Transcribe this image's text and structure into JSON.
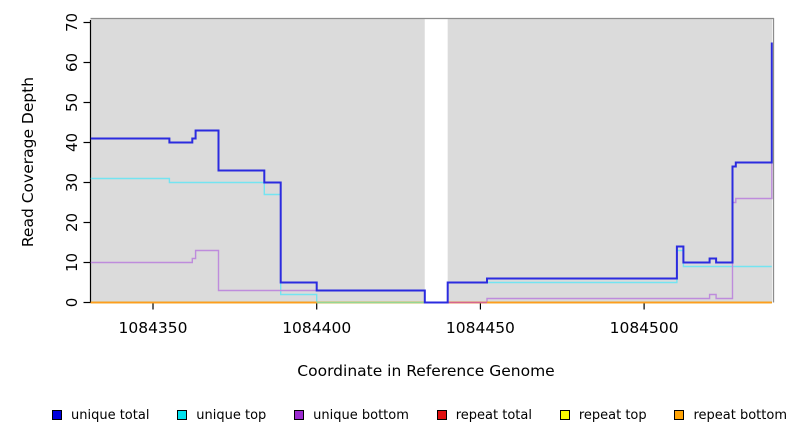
{
  "chart_data": {
    "type": "line",
    "subtype": "step-coverage-plot",
    "title": "",
    "xlabel": "Coordinate in Reference Genome",
    "ylabel": "Read Coverage Depth",
    "xlim": [
      1084331,
      1084539
    ],
    "ylim": [
      0,
      70
    ],
    "x_ticks": [
      1084350,
      1084400,
      1084450,
      1084500
    ],
    "y_ticks": [
      0,
      10,
      20,
      30,
      40,
      50,
      60,
      70
    ],
    "grid": "off",
    "plot_background": "#DBDBDB",
    "frame_color": "#8C8C8C",
    "axis_color": "#000000",
    "masked_region": {
      "from": 1084433,
      "to": 1084440,
      "color": "#FFFFFF"
    },
    "series": [
      {
        "name": "unique total",
        "color": "#2B2BDF",
        "width": 2,
        "front": true,
        "points": [
          [
            1084331,
            41
          ],
          [
            1084355,
            40
          ],
          [
            1084362,
            41
          ],
          [
            1084363,
            43
          ],
          [
            1084370,
            33
          ],
          [
            1084384,
            30
          ],
          [
            1084389,
            5
          ],
          [
            1084400,
            3
          ],
          [
            1084433,
            0
          ],
          [
            1084440,
            5
          ],
          [
            1084452,
            6
          ],
          [
            1084510,
            14
          ],
          [
            1084512,
            10
          ],
          [
            1084520,
            11
          ],
          [
            1084522,
            10
          ],
          [
            1084527,
            34
          ],
          [
            1084528,
            35
          ],
          [
            1084539,
            65
          ]
        ]
      },
      {
        "name": "unique top",
        "color": "#74E4F1",
        "width": 1.4,
        "points": [
          [
            1084331,
            31
          ],
          [
            1084355,
            30
          ],
          [
            1084384,
            27
          ],
          [
            1084389,
            2
          ],
          [
            1084400,
            0
          ],
          [
            1084440,
            5
          ],
          [
            1084510,
            13
          ],
          [
            1084512,
            9
          ]
        ]
      },
      {
        "name": "unique bottom",
        "color": "#BE8CDC",
        "width": 1.4,
        "points": [
          [
            1084331,
            10
          ],
          [
            1084362,
            11
          ],
          [
            1084363,
            13
          ],
          [
            1084370,
            3
          ],
          [
            1084433,
            0
          ],
          [
            1084452,
            1
          ],
          [
            1084520,
            2
          ],
          [
            1084522,
            1
          ],
          [
            1084527,
            25
          ],
          [
            1084528,
            26
          ],
          [
            1084539,
            35
          ]
        ]
      },
      {
        "name": "repeat total",
        "color": "#E02020",
        "width": 1.4,
        "points": [
          [
            1084331,
            0
          ]
        ]
      },
      {
        "name": "repeat top",
        "color": "#F2F200",
        "width": 1.4,
        "points": [
          [
            1084331,
            0
          ]
        ]
      },
      {
        "name": "repeat bottom",
        "color": "#FF9D1E",
        "width": 1.6,
        "points": [
          [
            1084331,
            0
          ]
        ]
      }
    ],
    "baseline_overlaps": [
      {
        "from": 1084400,
        "to": 1084433,
        "value": 0,
        "color": "#94D794"
      },
      {
        "from": 1084440,
        "to": 1084452,
        "value": 0,
        "color": "#D5648F"
      }
    ],
    "legend": [
      {
        "label": "unique total",
        "color": "#0000DD"
      },
      {
        "label": "unique top",
        "color": "#00E2EE"
      },
      {
        "label": "unique bottom",
        "color": "#9C2BD0"
      },
      {
        "label": "repeat total",
        "color": "#E01010"
      },
      {
        "label": "repeat top",
        "color": "#FBFB00"
      },
      {
        "label": "repeat bottom",
        "color": "#FFA305"
      }
    ]
  }
}
